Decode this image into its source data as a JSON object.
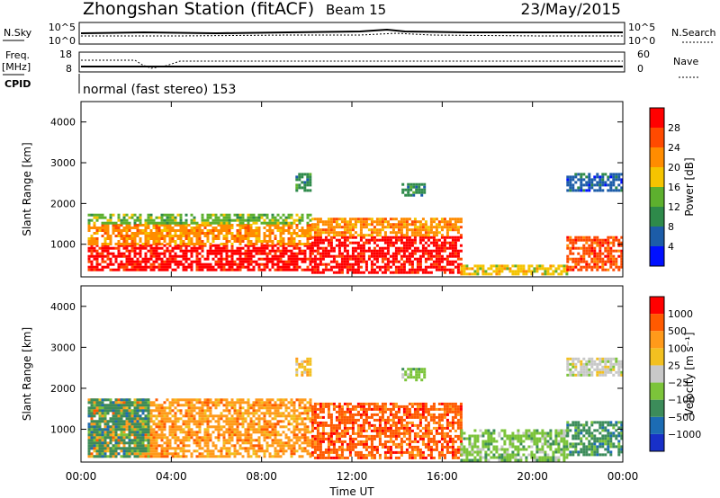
{
  "header": {
    "title": "Zhongshan Station (fitACF)",
    "beam": "Beam 15",
    "date": "23/May/2015"
  },
  "status_panels": {
    "nsky_label": "N.Sky",
    "nsky_ticks": [
      "10^5",
      "10^0"
    ],
    "nsearch_label": "N.Search",
    "nsearch_ticks": [
      "10^5",
      "10^0"
    ],
    "freq_label": "Freq.",
    "freq_unit": "[MHz]",
    "freq_ticks": [
      "18",
      "8"
    ],
    "nave_label": "Nave",
    "nave_ticks": [
      "60",
      "0"
    ],
    "cpid_label": "CPID",
    "cpid_text": "normal (fast stereo) 153"
  },
  "x_axis": {
    "label": "Time UT",
    "ticks": [
      "00:00",
      "04:00",
      "08:00",
      "12:00",
      "16:00",
      "20:00",
      "00:00"
    ]
  },
  "colors": {
    "power": [
      "#0010ff",
      "#1c5ca8",
      "#2e8a4a",
      "#5db02e",
      "#f5c400",
      "#ff8c00",
      "#ff4a00",
      "#ff0000"
    ],
    "velocity": [
      "#ff0000",
      "#ff5a00",
      "#ff9a1a",
      "#f2c020",
      "#c8c8c8",
      "#7cc43a",
      "#3c8c5a",
      "#1c6cb4",
      "#1830c8"
    ]
  },
  "chart_data": [
    {
      "type": "heatmap",
      "name_key": "power",
      "ylabel": "Slant Range [km]",
      "ylim": [
        200,
        4500
      ],
      "y_ticks": [
        "1000",
        "2000",
        "3000",
        "4000"
      ],
      "x_hours": [
        0,
        24
      ],
      "colorbar": {
        "label": "Power [dB]",
        "ticks": [
          "4",
          "8",
          "12",
          "16",
          "20",
          "24",
          "28"
        ]
      },
      "regions": [
        {
          "t": [
            0.3,
            10.2
          ],
          "r": [
            350,
            1000
          ],
          "level": 7
        },
        {
          "t": [
            0.3,
            10.2
          ],
          "r": [
            1000,
            1500
          ],
          "level": 5
        },
        {
          "t": [
            0.3,
            10.2
          ],
          "r": [
            1500,
            1750
          ],
          "level": 3
        },
        {
          "t": [
            10.2,
            16.8
          ],
          "r": [
            300,
            1200
          ],
          "level": 7
        },
        {
          "t": [
            10.2,
            16.8
          ],
          "r": [
            1200,
            1650
          ],
          "level": 5
        },
        {
          "t": [
            16.8,
            21.5
          ],
          "r": [
            250,
            500
          ],
          "level": 4
        },
        {
          "t": [
            21.5,
            24
          ],
          "r": [
            350,
            1200
          ],
          "level": 6
        },
        {
          "t": [
            21.5,
            24
          ],
          "r": [
            2300,
            2750
          ],
          "level": 1
        },
        {
          "t": [
            9.5,
            10.2
          ],
          "r": [
            2300,
            2750
          ],
          "level": 2
        },
        {
          "t": [
            14.2,
            15.2
          ],
          "r": [
            2200,
            2500
          ],
          "level": 2
        }
      ]
    },
    {
      "type": "heatmap",
      "name_key": "velocity",
      "ylabel": "Slant Range [km]",
      "ylim": [
        200,
        4500
      ],
      "y_ticks": [
        "1000",
        "2000",
        "3000",
        "4000"
      ],
      "x_hours": [
        0,
        24
      ],
      "colorbar": {
        "label": "Velocity [m s⁻¹]",
        "ticks": [
          "1000",
          "500",
          "100",
          "25",
          "−25",
          "−100",
          "−500",
          "−1000"
        ]
      },
      "regions": [
        {
          "t": [
            0.3,
            10.2
          ],
          "r": [
            350,
            1750
          ],
          "level": 2
        },
        {
          "t": [
            0.3,
            3.0
          ],
          "r": [
            350,
            1750
          ],
          "level": 6
        },
        {
          "t": [
            10.2,
            16.8
          ],
          "r": [
            300,
            1650
          ],
          "level": 1
        },
        {
          "t": [
            16.8,
            21.5
          ],
          "r": [
            250,
            1000
          ],
          "level": 5
        },
        {
          "t": [
            21.5,
            24
          ],
          "r": [
            350,
            1200
          ],
          "level": 6
        },
        {
          "t": [
            21.5,
            24
          ],
          "r": [
            2300,
            2750
          ],
          "level": 4
        },
        {
          "t": [
            9.5,
            10.2
          ],
          "r": [
            2300,
            2750
          ],
          "level": 3
        },
        {
          "t": [
            14.2,
            15.2
          ],
          "r": [
            2200,
            2500
          ],
          "level": 5
        }
      ]
    }
  ]
}
